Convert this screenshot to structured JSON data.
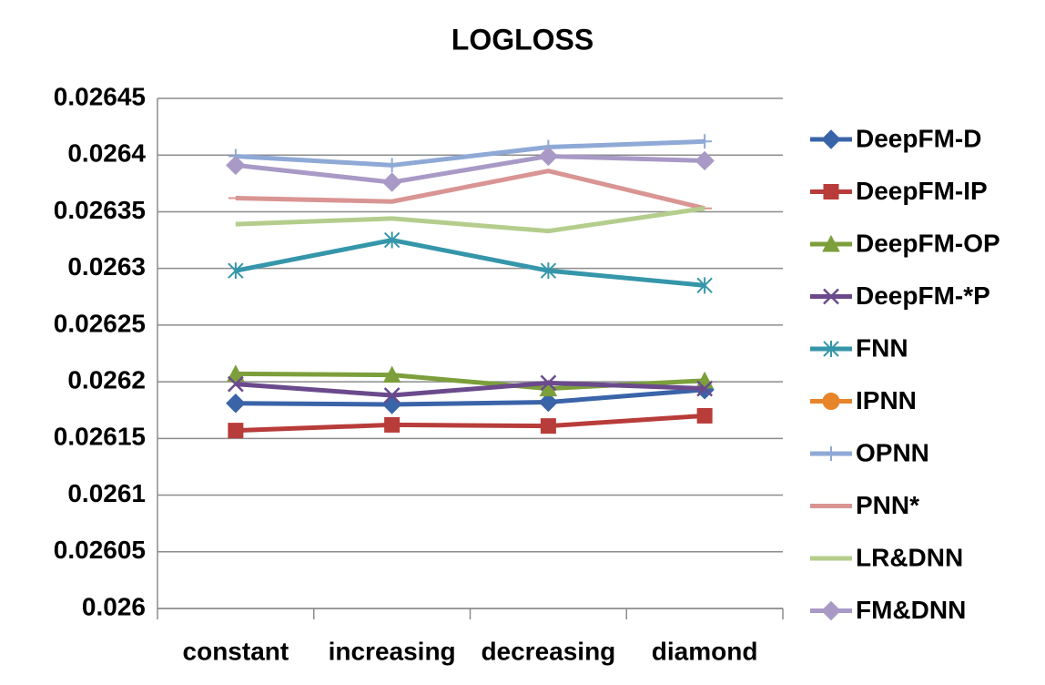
{
  "chart_data": {
    "type": "line",
    "title": "LOGLOSS",
    "categories": [
      "constant",
      "increasing",
      "decreasing",
      "diamond"
    ],
    "ylim": [
      0.026,
      0.02645
    ],
    "yticks": [
      0.026,
      0.02605,
      0.0261,
      0.02615,
      0.0262,
      0.02625,
      0.0263,
      0.02635,
      0.0264,
      0.02645
    ],
    "grid": true,
    "legend": "right",
    "series": [
      {
        "name": "DeepFM-D",
        "color": "#3a64a8",
        "marker": "diamond",
        "values": [
          0.026181,
          0.02618,
          0.026182,
          0.026193
        ]
      },
      {
        "name": "DeepFM-IP",
        "color": "#b83c3a",
        "marker": "square",
        "values": [
          0.026157,
          0.026162,
          0.026161,
          0.02617
        ]
      },
      {
        "name": "DeepFM-OP",
        "color": "#7c9f3b",
        "marker": "triangle",
        "values": [
          0.026207,
          0.026206,
          0.026194,
          0.026201
        ]
      },
      {
        "name": "DeepFM-*P",
        "color": "#6a4a8c",
        "marker": "x",
        "values": [
          0.026198,
          0.026188,
          0.026199,
          0.026194
        ]
      },
      {
        "name": "FNN",
        "color": "#3596aa",
        "marker": "asterisk",
        "values": [
          0.026298,
          0.026325,
          0.026298,
          0.026285
        ]
      },
      {
        "name": "IPNN",
        "color": "#e8842a",
        "marker": "circle",
        "values": [
          null,
          null,
          null,
          null
        ]
      },
      {
        "name": "OPNN",
        "color": "#8fa9d6",
        "marker": "plus",
        "values": [
          0.026399,
          0.026391,
          0.026407,
          0.026412
        ]
      },
      {
        "name": "PNN*",
        "color": "#d99593",
        "marker": "dash",
        "values": [
          0.026362,
          0.026359,
          0.026386,
          0.026353
        ]
      },
      {
        "name": "LR&DNN",
        "color": "#b4cd8c",
        "marker": "none",
        "values": [
          0.026339,
          0.026344,
          0.026333,
          0.026353
        ]
      },
      {
        "name": "FM&DNN",
        "color": "#a899c6",
        "marker": "diamond",
        "values": [
          0.026391,
          0.026376,
          0.026399,
          0.026395
        ]
      }
    ]
  }
}
